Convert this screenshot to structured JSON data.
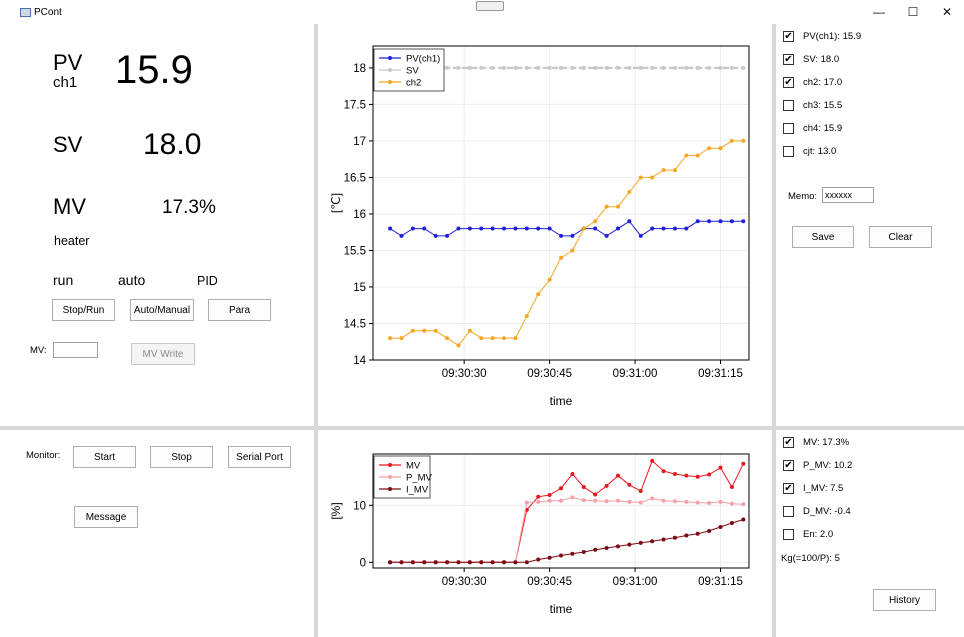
{
  "window": {
    "title": "PCont",
    "minimize_glyph": "—",
    "maximize_glyph": "☐",
    "close_glyph": "✕"
  },
  "left_panel": {
    "pv_label": "PV",
    "pv_sub": "ch1",
    "pv_value": "15.9",
    "sv_label": "SV",
    "sv_value": "18.0",
    "mv_label": "MV",
    "mv_value": "17.3%",
    "output_name": "heater",
    "state_run": "run",
    "state_mode": "auto",
    "state_algo": "PID",
    "stop_run_button": "Stop/Run",
    "auto_manual_button": "Auto/Manual",
    "para_button": "Para",
    "mv_input_label": "MV:",
    "mv_input_value": "",
    "mv_write_button": "MV Write"
  },
  "monitor_panel": {
    "label": "Monitor:",
    "start_button": "Start",
    "stop_button": "Stop",
    "serial_port_button": "Serial Port",
    "message_button": "Message"
  },
  "right_top": {
    "channels": [
      {
        "label": "PV(ch1):",
        "value": "15.9",
        "checked": true
      },
      {
        "label": "SV:",
        "value": "18.0",
        "checked": true
      },
      {
        "label": "ch2:",
        "value": "17.0",
        "checked": true
      },
      {
        "label": "ch3:",
        "value": "15.5",
        "checked": false
      },
      {
        "label": "ch4:",
        "value": "15.9",
        "checked": false
      },
      {
        "label": "cjt:",
        "value": "13.0",
        "checked": false
      }
    ],
    "memo_label": "Memo:",
    "memo_value": "xxxxxx",
    "save_button": "Save",
    "clear_button": "Clear"
  },
  "right_bottom": {
    "items": [
      {
        "label": "MV:",
        "value": "17.3%",
        "checked": true
      },
      {
        "label": "P_MV:",
        "value": "10.2",
        "checked": true
      },
      {
        "label": "I_MV:",
        "value": "7.5",
        "checked": true
      },
      {
        "label": "D_MV:",
        "value": "-0.4",
        "checked": false
      },
      {
        "label": "En:",
        "value": "2.0",
        "checked": false
      }
    ],
    "kg_label": "Kg(=100/P):",
    "kg_value": "5",
    "history_button": "History"
  },
  "icons": {
    "check": "✔",
    "app": "window-icon"
  },
  "colors": {
    "pv": "#1f1fdc",
    "sv": "#c8c8c8",
    "ch2": "#f5a623",
    "mv": "#e8181e",
    "p_mv": "#f4a0a8",
    "i_mv": "#7a0a14"
  },
  "chart_data": [
    {
      "type": "line",
      "xlabel": "time",
      "ylabel": "[℃]",
      "ylim": [
        14,
        18.3
      ],
      "xlim": [
        "09:30:14",
        "09:31:20"
      ],
      "x_ticks": [
        "09:30:30",
        "09:30:45",
        "09:31:00",
        "09:31:15"
      ],
      "y_ticks": [
        "14",
        "14.5",
        "15",
        "15.5",
        "16",
        "16.5",
        "17",
        "17.5",
        "18"
      ],
      "x": [
        "09:30:17",
        "09:30:19",
        "09:30:21",
        "09:30:23",
        "09:30:25",
        "09:30:27",
        "09:30:29",
        "09:30:31",
        "09:30:33",
        "09:30:35",
        "09:30:37",
        "09:30:39",
        "09:30:41",
        "09:30:43",
        "09:30:45",
        "09:30:47",
        "09:30:49",
        "09:30:51",
        "09:30:53",
        "09:30:55",
        "09:30:57",
        "09:30:59",
        "09:31:01",
        "09:31:03",
        "09:31:05",
        "09:31:07",
        "09:31:09",
        "09:31:11",
        "09:31:13",
        "09:31:15",
        "09:31:17",
        "09:31:19"
      ],
      "series": [
        {
          "name": "PV(ch1)",
          "values": [
            15.8,
            15.7,
            15.8,
            15.8,
            15.7,
            15.7,
            15.8,
            15.8,
            15.8,
            15.8,
            15.8,
            15.8,
            15.8,
            15.8,
            15.8,
            15.7,
            15.7,
            15.8,
            15.8,
            15.7,
            15.8,
            15.9,
            15.7,
            15.8,
            15.8,
            15.8,
            15.8,
            15.9,
            15.9,
            15.9,
            15.9,
            15.9
          ]
        },
        {
          "name": "SV",
          "values": [
            18.0,
            18.0,
            18.0,
            18.0,
            18.0,
            18.0,
            18.0,
            18.0,
            18.0,
            18.0,
            18.0,
            18.0,
            18.0,
            18.0,
            18.0,
            18.0,
            18.0,
            18.0,
            18.0,
            18.0,
            18.0,
            18.0,
            18.0,
            18.0,
            18.0,
            18.0,
            18.0,
            18.0,
            18.0,
            18.0,
            18.0,
            18.0
          ]
        },
        {
          "name": "ch2",
          "values": [
            14.3,
            14.3,
            14.4,
            14.4,
            14.4,
            14.3,
            14.2,
            14.4,
            14.3,
            14.3,
            14.3,
            14.3,
            14.6,
            14.9,
            15.1,
            15.4,
            15.5,
            15.8,
            15.9,
            16.1,
            16.1,
            16.3,
            16.5,
            16.5,
            16.6,
            16.6,
            16.8,
            16.8,
            16.9,
            16.9,
            17.0,
            17.0
          ]
        }
      ],
      "legend": "top-left",
      "grid": true
    },
    {
      "type": "line",
      "xlabel": "time",
      "ylabel": "[%]",
      "ylim": [
        -1,
        19
      ],
      "xlim": [
        "09:30:14",
        "09:31:20"
      ],
      "x_ticks": [
        "09:30:30",
        "09:30:45",
        "09:31:00",
        "09:31:15"
      ],
      "y_ticks": [
        "0",
        "10"
      ],
      "x": [
        "09:30:17",
        "09:30:19",
        "09:30:21",
        "09:30:23",
        "09:30:25",
        "09:30:27",
        "09:30:29",
        "09:30:31",
        "09:30:33",
        "09:30:35",
        "09:30:37",
        "09:30:39",
        "09:30:41",
        "09:30:43",
        "09:30:45",
        "09:30:47",
        "09:30:49",
        "09:30:51",
        "09:30:53",
        "09:30:55",
        "09:30:57",
        "09:30:59",
        "09:31:01",
        "09:31:03",
        "09:31:05",
        "09:31:07",
        "09:31:09",
        "09:31:11",
        "09:31:13",
        "09:31:15",
        "09:31:17",
        "09:31:19"
      ],
      "series": [
        {
          "name": "MV",
          "values": [
            0,
            0,
            0,
            0,
            0,
            0,
            0,
            0,
            0,
            0,
            0,
            0,
            9.2,
            11.5,
            11.8,
            13.0,
            15.5,
            13.2,
            11.9,
            13.4,
            15.2,
            13.6,
            12.5,
            17.8,
            16.0,
            15.5,
            15.2,
            15.0,
            15.4,
            16.6,
            13.2,
            17.3
          ]
        },
        {
          "name": "P_MV",
          "values": [
            0,
            0,
            0,
            0,
            0,
            0,
            0,
            0,
            0,
            0,
            0,
            0,
            10.5,
            10.6,
            10.8,
            10.8,
            11.4,
            10.9,
            10.8,
            10.7,
            10.8,
            10.6,
            10.5,
            11.2,
            10.8,
            10.7,
            10.6,
            10.5,
            10.4,
            10.6,
            10.3,
            10.2
          ]
        },
        {
          "name": "I_MV",
          "values": [
            0,
            0,
            0,
            0,
            0,
            0,
            0,
            0,
            0,
            0,
            0,
            0,
            0,
            0.5,
            0.8,
            1.2,
            1.5,
            1.8,
            2.2,
            2.5,
            2.8,
            3.1,
            3.4,
            3.7,
            4.0,
            4.3,
            4.7,
            5.0,
            5.5,
            6.2,
            6.9,
            7.5
          ]
        }
      ],
      "legend": "top-left",
      "grid": true
    }
  ]
}
